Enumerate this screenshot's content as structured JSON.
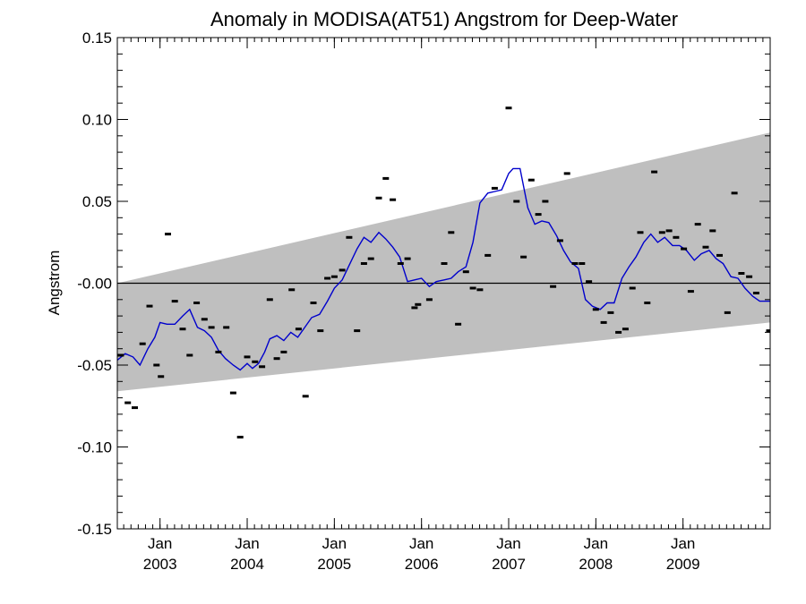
{
  "chart_data": {
    "type": "scatter",
    "title": "Anomaly in MODISA(AT51) Angstrom for Deep-Water",
    "xlabel": "",
    "ylabel": "Angstrom",
    "xlim": [
      2002.51,
      2010.0
    ],
    "ylim": [
      -0.15,
      0.15
    ],
    "y_ticks": [
      -0.15,
      -0.1,
      -0.05,
      0.0,
      0.05,
      0.1,
      0.15
    ],
    "y_tick_labels": [
      "-0.15",
      "-0.10",
      "-0.05",
      "-0.00",
      "0.05",
      "0.10",
      "0.15"
    ],
    "x_tick_labels": [
      {
        "x": 2003.0,
        "month": "Jan",
        "year": "2003"
      },
      {
        "x": 2004.0,
        "month": "Jan",
        "year": "2004"
      },
      {
        "x": 2005.0,
        "month": "Jan",
        "year": "2005"
      },
      {
        "x": 2006.0,
        "month": "Jan",
        "year": "2006"
      },
      {
        "x": 2007.0,
        "month": "Jan",
        "year": "2007"
      },
      {
        "x": 2008.0,
        "month": "Jan",
        "year": "2008"
      },
      {
        "x": 2009.0,
        "month": "Jan",
        "year": "2009"
      }
    ],
    "band": {
      "x": [
        2002.51,
        2010.0
      ],
      "upper": [
        0.0,
        0.092
      ],
      "lower": [
        -0.066,
        -0.024
      ]
    },
    "zero_line": 0.0,
    "series": [
      {
        "kind": "monthly_anomaly",
        "style": "dash-marker",
        "points": [
          [
            2002.55,
            -0.044
          ],
          [
            2002.63,
            -0.073
          ],
          [
            2002.71,
            -0.076
          ],
          [
            2002.8,
            -0.037
          ],
          [
            2002.88,
            -0.014
          ],
          [
            2002.96,
            -0.05
          ],
          [
            2003.01,
            -0.057
          ],
          [
            2003.09,
            0.03
          ],
          [
            2003.17,
            -0.011
          ],
          [
            2003.26,
            -0.028
          ],
          [
            2003.34,
            -0.044
          ],
          [
            2003.42,
            -0.012
          ],
          [
            2003.51,
            -0.022
          ],
          [
            2003.59,
            -0.027
          ],
          [
            2003.67,
            -0.042
          ],
          [
            2003.76,
            -0.027
          ],
          [
            2003.84,
            -0.067
          ],
          [
            2003.92,
            -0.094
          ],
          [
            2004.0,
            -0.045
          ],
          [
            2004.09,
            -0.048
          ],
          [
            2004.17,
            -0.051
          ],
          [
            2004.26,
            -0.01
          ],
          [
            2004.34,
            -0.046
          ],
          [
            2004.42,
            -0.042
          ],
          [
            2004.51,
            -0.004
          ],
          [
            2004.59,
            -0.028
          ],
          [
            2004.67,
            -0.069
          ],
          [
            2004.76,
            -0.012
          ],
          [
            2004.84,
            -0.029
          ],
          [
            2004.92,
            0.003
          ],
          [
            2005.0,
            0.004
          ],
          [
            2005.09,
            0.008
          ],
          [
            2005.17,
            0.028
          ],
          [
            2005.26,
            -0.029
          ],
          [
            2005.34,
            0.012
          ],
          [
            2005.42,
            0.015
          ],
          [
            2005.51,
            0.052
          ],
          [
            2005.59,
            0.064
          ],
          [
            2005.67,
            0.051
          ],
          [
            2005.76,
            0.012
          ],
          [
            2005.84,
            0.015
          ],
          [
            2005.92,
            -0.015
          ],
          [
            2005.96,
            -0.013
          ],
          [
            2006.09,
            -0.01
          ],
          [
            2006.26,
            0.012
          ],
          [
            2006.34,
            0.031
          ],
          [
            2006.42,
            -0.025
          ],
          [
            2006.51,
            0.007
          ],
          [
            2006.59,
            -0.003
          ],
          [
            2006.67,
            -0.004
          ],
          [
            2006.76,
            0.017
          ],
          [
            2006.84,
            0.058
          ],
          [
            2007.0,
            0.107
          ],
          [
            2007.09,
            0.05
          ],
          [
            2007.17,
            0.016
          ],
          [
            2007.26,
            0.063
          ],
          [
            2007.34,
            0.042
          ],
          [
            2007.42,
            0.05
          ],
          [
            2007.51,
            -0.002
          ],
          [
            2007.59,
            0.026
          ],
          [
            2007.67,
            0.067
          ],
          [
            2007.76,
            0.012
          ],
          [
            2007.84,
            0.012
          ],
          [
            2007.92,
            0.001
          ],
          [
            2008.0,
            -0.016
          ],
          [
            2008.09,
            -0.024
          ],
          [
            2008.17,
            -0.018
          ],
          [
            2008.26,
            -0.03
          ],
          [
            2008.34,
            -0.028
          ],
          [
            2008.42,
            -0.003
          ],
          [
            2008.51,
            0.031
          ],
          [
            2008.59,
            -0.012
          ],
          [
            2008.67,
            0.068
          ],
          [
            2008.76,
            0.031
          ],
          [
            2008.84,
            0.032
          ],
          [
            2008.92,
            0.028
          ],
          [
            2009.01,
            0.021
          ],
          [
            2009.09,
            -0.005
          ],
          [
            2009.17,
            0.036
          ],
          [
            2009.26,
            0.022
          ],
          [
            2009.34,
            0.032
          ],
          [
            2009.42,
            0.017
          ],
          [
            2009.51,
            -0.018
          ],
          [
            2009.59,
            0.055
          ],
          [
            2009.67,
            0.006
          ],
          [
            2009.76,
            0.004
          ],
          [
            2009.84,
            -0.006
          ],
          [
            2009.99,
            -0.029
          ]
        ]
      },
      {
        "kind": "smoothed",
        "style": "line",
        "color": "#0000cc",
        "points": [
          [
            2002.51,
            -0.047
          ],
          [
            2002.6,
            -0.043
          ],
          [
            2002.69,
            -0.045
          ],
          [
            2002.77,
            -0.05
          ],
          [
            2002.86,
            -0.04
          ],
          [
            2002.94,
            -0.033
          ],
          [
            2003.0,
            -0.024
          ],
          [
            2003.08,
            -0.025
          ],
          [
            2003.17,
            -0.025
          ],
          [
            2003.26,
            -0.02
          ],
          [
            2003.34,
            -0.016
          ],
          [
            2003.43,
            -0.027
          ],
          [
            2003.51,
            -0.029
          ],
          [
            2003.59,
            -0.033
          ],
          [
            2003.67,
            -0.041
          ],
          [
            2003.75,
            -0.046
          ],
          [
            2003.84,
            -0.05
          ],
          [
            2003.92,
            -0.053
          ],
          [
            2004.0,
            -0.049
          ],
          [
            2004.06,
            -0.052
          ],
          [
            2004.13,
            -0.049
          ],
          [
            2004.2,
            -0.042
          ],
          [
            2004.26,
            -0.034
          ],
          [
            2004.34,
            -0.032
          ],
          [
            2004.42,
            -0.035
          ],
          [
            2004.5,
            -0.03
          ],
          [
            2004.58,
            -0.033
          ],
          [
            2004.66,
            -0.027
          ],
          [
            2004.74,
            -0.021
          ],
          [
            2004.83,
            -0.019
          ],
          [
            2004.92,
            -0.011
          ],
          [
            2005.0,
            -0.003
          ],
          [
            2005.09,
            0.002
          ],
          [
            2005.17,
            0.011
          ],
          [
            2005.26,
            0.021
          ],
          [
            2005.34,
            0.028
          ],
          [
            2005.42,
            0.025
          ],
          [
            2005.51,
            0.031
          ],
          [
            2005.59,
            0.027
          ],
          [
            2005.67,
            0.022
          ],
          [
            2005.75,
            0.016
          ],
          [
            2005.84,
            0.001
          ],
          [
            2005.92,
            0.002
          ],
          [
            2006.0,
            0.003
          ],
          [
            2006.09,
            -0.002
          ],
          [
            2006.17,
            0.001
          ],
          [
            2006.26,
            0.002
          ],
          [
            2006.34,
            0.003
          ],
          [
            2006.42,
            0.007
          ],
          [
            2006.51,
            0.01
          ],
          [
            2006.59,
            0.025
          ],
          [
            2006.67,
            0.049
          ],
          [
            2006.76,
            0.055
          ],
          [
            2006.84,
            0.056
          ],
          [
            2006.92,
            0.057
          ],
          [
            2007.0,
            0.067
          ],
          [
            2007.05,
            0.07
          ],
          [
            2007.13,
            0.07
          ],
          [
            2007.22,
            0.046
          ],
          [
            2007.3,
            0.036
          ],
          [
            2007.38,
            0.038
          ],
          [
            2007.46,
            0.037
          ],
          [
            2007.55,
            0.029
          ],
          [
            2007.63,
            0.02
          ],
          [
            2007.71,
            0.013
          ],
          [
            2007.8,
            0.009
          ],
          [
            2007.88,
            -0.01
          ],
          [
            2007.96,
            -0.014
          ],
          [
            2008.05,
            -0.016
          ],
          [
            2008.13,
            -0.012
          ],
          [
            2008.21,
            -0.012
          ],
          [
            2008.3,
            0.003
          ],
          [
            2008.38,
            0.01
          ],
          [
            2008.46,
            0.016
          ],
          [
            2008.55,
            0.025
          ],
          [
            2008.63,
            0.03
          ],
          [
            2008.71,
            0.025
          ],
          [
            2008.79,
            0.028
          ],
          [
            2008.88,
            0.023
          ],
          [
            2008.96,
            0.023
          ],
          [
            2009.04,
            0.02
          ],
          [
            2009.13,
            0.014
          ],
          [
            2009.21,
            0.018
          ],
          [
            2009.3,
            0.02
          ],
          [
            2009.38,
            0.015
          ],
          [
            2009.46,
            0.012
          ],
          [
            2009.55,
            0.004
          ],
          [
            2009.63,
            0.003
          ],
          [
            2009.71,
            -0.003
          ],
          [
            2009.8,
            -0.008
          ],
          [
            2009.88,
            -0.011
          ],
          [
            2010.0,
            -0.011
          ]
        ]
      }
    ],
    "colors": {
      "band": "#bfbfbf",
      "line": "#0000cc",
      "marker": "#000000",
      "axis": "#000000"
    }
  }
}
